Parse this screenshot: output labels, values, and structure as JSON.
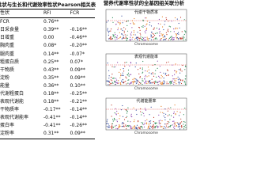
{
  "table": {
    "title": "性状与生长和代谢效率性状Pearson相关表",
    "header": [
      "性状",
      "RFI",
      "FCR"
    ],
    "rows": [
      [
        "FCR",
        "0.76**",
        ""
      ],
      [
        "日采食量",
        "0.39**",
        "-0.16**"
      ],
      [
        "日增重",
        "0.00",
        "-0.46**"
      ],
      [
        "胸肉重",
        "0.08*",
        "-0.20**"
      ],
      [
        "腿肉重",
        "0.14**",
        "-0.07*"
      ],
      [
        "粗蛋白质",
        "0.25**",
        "0.07*"
      ],
      [
        "干物质",
        "0.43**",
        "0.09**"
      ],
      [
        "淀粉",
        "0.35**",
        "0.09**"
      ],
      [
        "能量",
        "0.36**",
        "0.10**"
      ],
      [
        "代谢粗蛋白",
        "0.18**",
        "-0.25**"
      ],
      [
        "表观代谢能",
        "0.18**",
        "-0.21**"
      ],
      [
        "干物质率",
        "-0.17**",
        "-0.14**"
      ],
      [
        "表观代谢能率",
        "-0.41**",
        "-0.14**"
      ],
      [
        "蛋白率",
        "-0.41**",
        "-0.26**"
      ],
      [
        "淀粉率",
        "0.31**",
        "0.09**"
      ]
    ]
  },
  "plots": {
    "title": "营养代谢率性状的全基因组关联分析",
    "panels": [
      {
        "label": "代谢干物质率",
        "x_label": "Chromosome"
      },
      {
        "label": "表观代谢能率",
        "x_label": "Chromosome"
      },
      {
        "label": "代谢能量率",
        "x_label": "Chromosome"
      }
    ]
  }
}
